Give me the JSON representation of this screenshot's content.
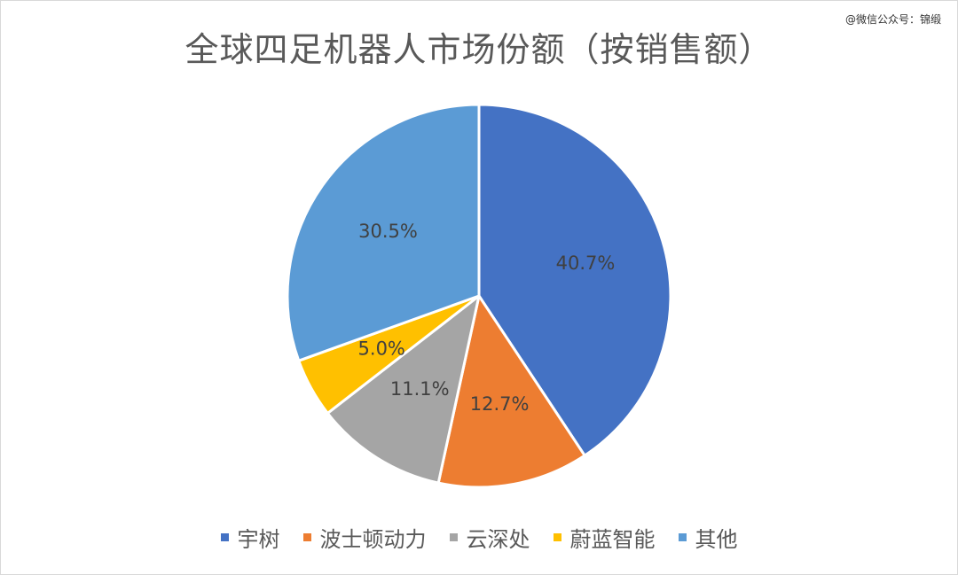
{
  "watermark": "@微信公众号：锦缎",
  "chart_data": {
    "type": "pie",
    "title": "全球四足机器人市场份额（按销售额）",
    "legend_position": "bottom",
    "slices": [
      {
        "label": "宇树",
        "value": 40.7,
        "display": "40.7%",
        "color": "#4472C4"
      },
      {
        "label": "波士顿动力",
        "value": 12.7,
        "display": "12.7%",
        "color": "#ED7D31"
      },
      {
        "label": "云深处",
        "value": 11.1,
        "display": "11.1%",
        "color": "#A5A5A5"
      },
      {
        "label": "蔚蓝智能",
        "value": 5.0,
        "display": "5.0%",
        "color": "#FFC000"
      },
      {
        "label": "其他",
        "value": 30.5,
        "display": "30.5%",
        "color": "#5B9BD5"
      }
    ]
  }
}
